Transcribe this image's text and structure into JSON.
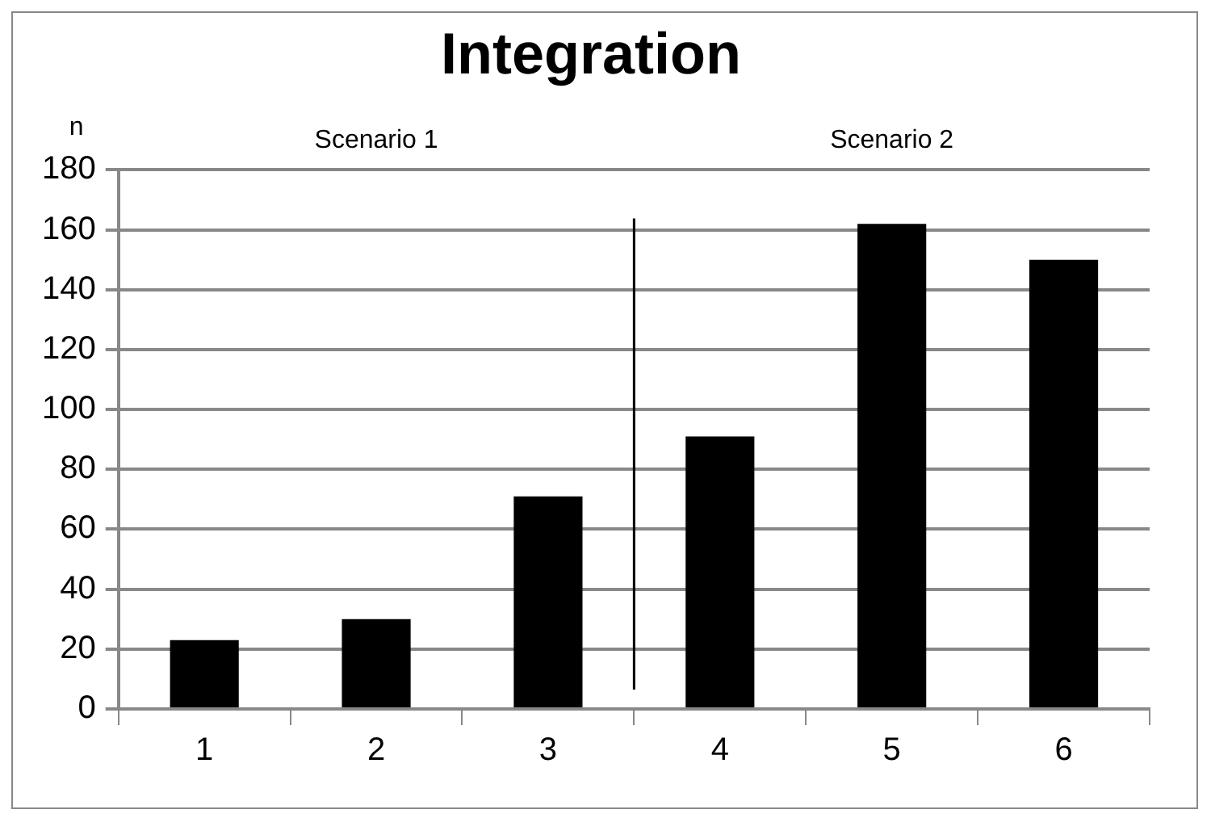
{
  "chart_data": {
    "type": "bar",
    "title": "Integration",
    "ylabel": "n",
    "x": [
      1,
      2,
      3,
      4,
      5,
      6
    ],
    "values": [
      23,
      30,
      71,
      91,
      162,
      150
    ],
    "color": "#000000",
    "xlim": [
      0.5,
      6.5
    ],
    "xticks": [
      {
        "value": 0.5,
        "label": null
      },
      1,
      {
        "value": 1.5,
        "label": null
      },
      2,
      {
        "value": 2.5,
        "label": null
      },
      3,
      {
        "value": 3.5,
        "label": null
      },
      4,
      {
        "value": 4.5,
        "label": null
      },
      5,
      {
        "value": 5.5,
        "label": null
      },
      6,
      {
        "value": 6.5,
        "label": null
      }
    ],
    "ylim": [
      0,
      180
    ],
    "yticks": [
      0,
      20,
      40,
      60,
      80,
      100,
      120,
      140,
      160,
      180
    ],
    "grid": "y",
    "legend": false,
    "ref_lines": [
      {
        "axis": "x",
        "value": 3.5,
        "color": "#000000"
      }
    ],
    "annotations": [
      "Scenario 1",
      "Scenario 2"
    ]
  }
}
